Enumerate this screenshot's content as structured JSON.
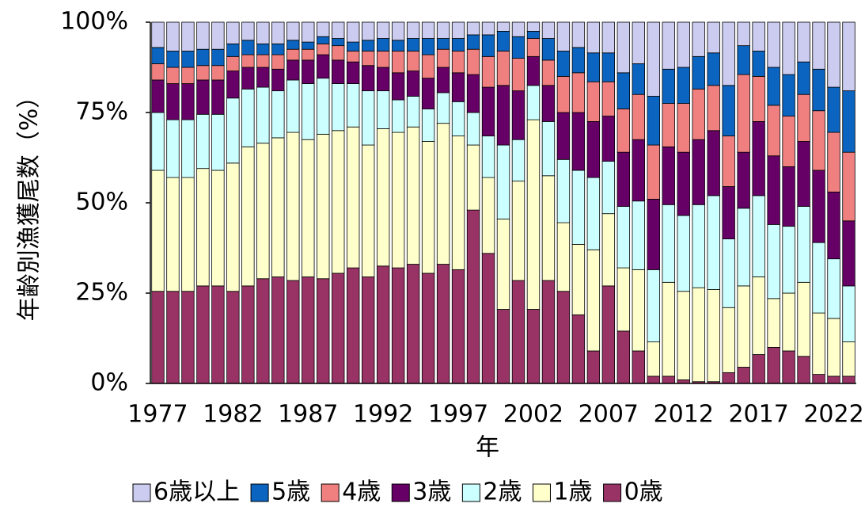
{
  "chart_data": {
    "type": "stacked_bar",
    "y_label": "年齢別漁獲尾数（%）",
    "x_label": "年",
    "categories": [
      "1977",
      null,
      null,
      null,
      null,
      "1982",
      null,
      null,
      null,
      null,
      "1987",
      null,
      null,
      null,
      null,
      "1992",
      null,
      null,
      null,
      null,
      "1997",
      null,
      null,
      null,
      null,
      "2002",
      null,
      null,
      null,
      null,
      "2007",
      null,
      null,
      null,
      null,
      "2012",
      null,
      null,
      null,
      null,
      "2017",
      null,
      null,
      null,
      null,
      "2022",
      null
    ],
    "ylim": [
      0,
      100
    ],
    "yticks": [
      {
        "value": 0,
        "label": "0%"
      },
      {
        "value": 25,
        "label": "25%"
      },
      {
        "value": 50,
        "label": "50%"
      },
      {
        "value": 75,
        "label": "75%"
      },
      {
        "value": 100,
        "label": "100%"
      }
    ],
    "legend": "bottom",
    "series": [
      {
        "name": "6歳以上",
        "color": "#ccccf0",
        "values": [
          7,
          8,
          8,
          7.5,
          7.5,
          6,
          5,
          6,
          6,
          5,
          5.5,
          4,
          4.5,
          5.5,
          5,
          4.5,
          5,
          4.5,
          4.5,
          4.5,
          4.5,
          3.5,
          3.5,
          2.5,
          4,
          2.5,
          4.5,
          8,
          7,
          8.5,
          8.5,
          14,
          11.5,
          20.5,
          13,
          12.5,
          9.5,
          8.5,
          17.5,
          6.5,
          8,
          12.5,
          14.5,
          11,
          13,
          18,
          19
        ]
      },
      {
        "name": "5歳",
        "color": "#0a64c0",
        "values": [
          4.5,
          4.5,
          4.5,
          4.5,
          4.5,
          3.5,
          4,
          3,
          3,
          2.5,
          2,
          2,
          2,
          2.5,
          3,
          3.5,
          3,
          3.5,
          4.5,
          3,
          3.5,
          4,
          6,
          5.5,
          6,
          2,
          6,
          7,
          7,
          8,
          8,
          10,
          8.5,
          13.5,
          9.5,
          10,
          9,
          9,
          14,
          8,
          7,
          10.5,
          11.5,
          9,
          11.5,
          12.5,
          17
        ]
      },
      {
        "name": "4歳",
        "color": "#f08080",
        "values": [
          4.5,
          4.5,
          4.5,
          4,
          4,
          4,
          3.5,
          3.5,
          4,
          3,
          3,
          3,
          4,
          3,
          4,
          4.5,
          6,
          5.5,
          6.5,
          5,
          6,
          7,
          8.5,
          9.5,
          9,
          5,
          7,
          10,
          11,
          11,
          9.5,
          12,
          12.5,
          15,
          12,
          13.5,
          14,
          12.5,
          14,
          21.5,
          12.5,
          14,
          14,
          13,
          16.5,
          16.5,
          19
        ]
      },
      {
        "name": "3歳",
        "color": "#660066",
        "values": [
          9,
          10,
          10,
          9.5,
          9.5,
          7.5,
          6,
          5.5,
          6,
          5.5,
          6.5,
          6.5,
          6.5,
          6,
          7,
          6.5,
          7.5,
          7,
          8.5,
          7,
          8,
          10.5,
          13.5,
          16.5,
          13.5,
          8,
          10,
          13,
          16,
          15.5,
          12.5,
          15,
          17,
          19.5,
          16,
          17.5,
          18,
          18,
          14.5,
          15.5,
          20.5,
          19,
          16.5,
          18,
          20,
          18.5,
          18
        ]
      },
      {
        "name": "2歳",
        "color": "#ccffff",
        "values": [
          16,
          16,
          16,
          15,
          15.5,
          18,
          16,
          15.5,
          13,
          14.5,
          15.5,
          15.5,
          13,
          12,
          15,
          10.5,
          9,
          8.5,
          9,
          8.5,
          9.5,
          9,
          11.5,
          20.5,
          11.5,
          9.5,
          15,
          17.5,
          20.5,
          20,
          14.5,
          17,
          19,
          20,
          21.5,
          21,
          23,
          26,
          19,
          21.5,
          22.5,
          20.5,
          18.5,
          21,
          19.5,
          16.5,
          15.5
        ]
      },
      {
        "name": "1歳",
        "color": "#ffffcc",
        "values": [
          33.5,
          31.5,
          31.5,
          32.5,
          32,
          35.5,
          38.5,
          37.5,
          38.5,
          41,
          38,
          40,
          39.5,
          39,
          36.5,
          38,
          37.5,
          38,
          36.5,
          39,
          37,
          18,
          21,
          25,
          27.5,
          52.5,
          29,
          19,
          19.5,
          28,
          20,
          17.5,
          22.5,
          9.5,
          26,
          24.5,
          26,
          25.5,
          18,
          22.5,
          21.5,
          13.5,
          16,
          20.5,
          17,
          16,
          9.5
        ]
      },
      {
        "name": "0歳",
        "color": "#993366",
        "values": [
          25.5,
          25.5,
          25.5,
          27,
          27,
          25.5,
          27,
          29,
          29.5,
          28.5,
          29.5,
          29,
          30.5,
          32,
          29.5,
          32.5,
          32,
          33,
          30.5,
          33,
          31.5,
          48,
          36,
          20.5,
          28.5,
          20.5,
          28.5,
          25.5,
          19,
          9,
          27,
          14.5,
          9,
          2,
          2,
          1,
          0.5,
          0.5,
          3,
          4.5,
          8,
          10,
          9,
          7.5,
          2.5,
          2,
          2
        ]
      }
    ]
  }
}
